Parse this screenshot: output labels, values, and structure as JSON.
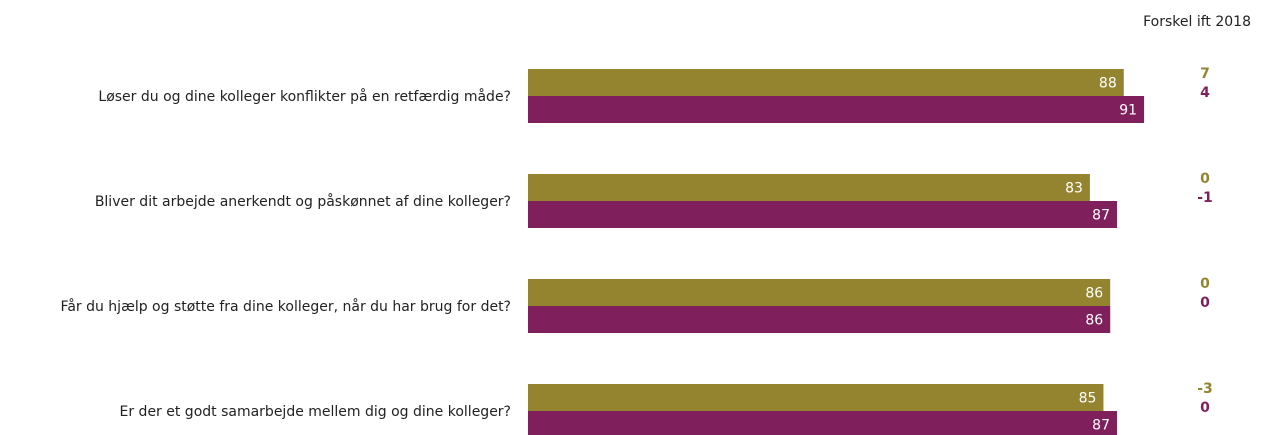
{
  "header": {
    "diff_label": "Forskel ift 2018"
  },
  "colors": {
    "series_a": "#948430",
    "series_b": "#7f1f5c",
    "label_text": "#ffffff"
  },
  "chart_data": {
    "type": "bar",
    "orientation": "horizontal",
    "categories": [
      "Løser du og dine kolleger konflikter på en retfærdig måde?",
      "Bliver dit arbejde anerkendt og påskønnet af dine kolleger?",
      "Får du hjælp og støtte fra dine kolleger, når du har brug for det?",
      "Er der et godt samarbejde mellem dig og dine kolleger?"
    ],
    "series": [
      {
        "values": [
          88,
          83,
          86,
          85
        ],
        "differences": [
          "7",
          "0",
          "0",
          "-3"
        ]
      },
      {
        "values": [
          91,
          87,
          86,
          87
        ],
        "differences": [
          "4",
          "-1",
          "0",
          "0"
        ]
      }
    ],
    "difference_column_title": "Forskel ift 2018"
  }
}
